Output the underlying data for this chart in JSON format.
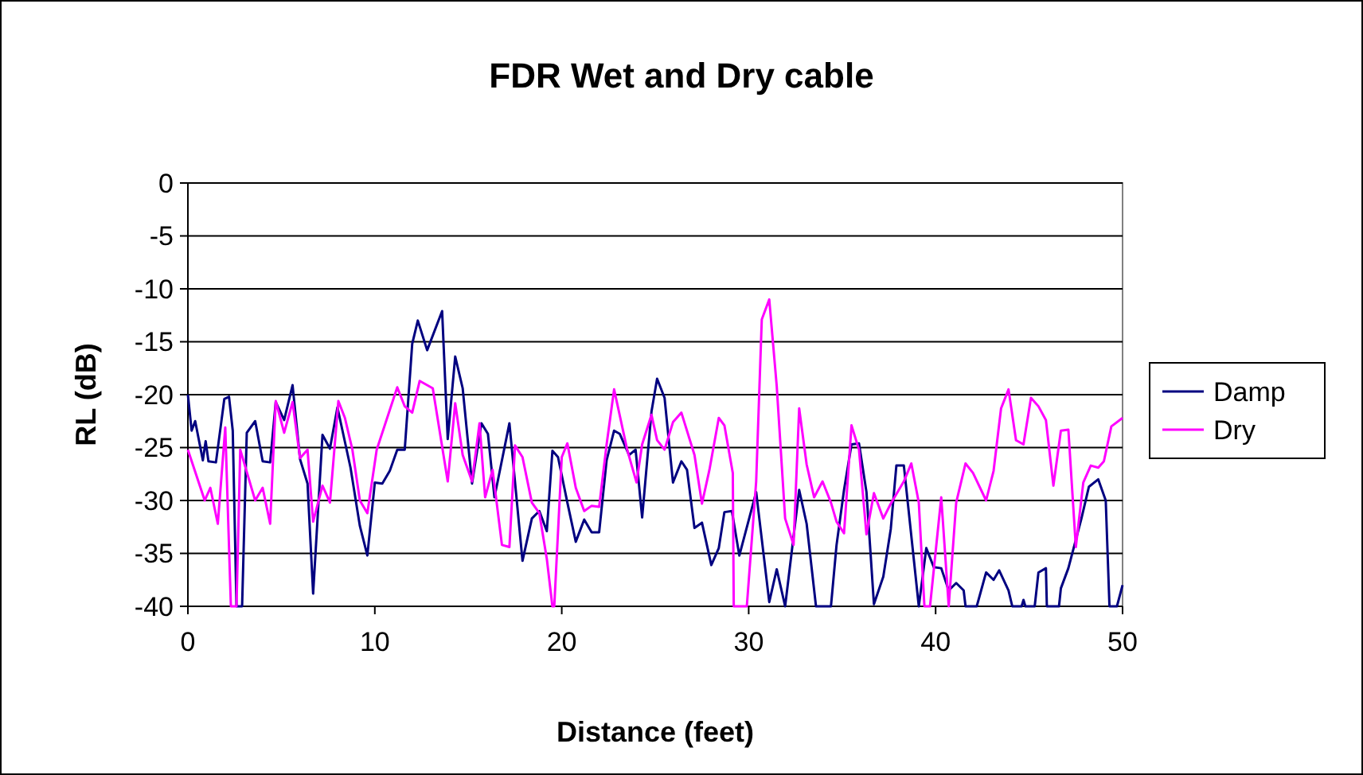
{
  "chart_data": {
    "type": "line",
    "title": "FDR Wet and Dry cable",
    "xlabel": "Distance (feet)",
    "ylabel": "RL (dB)",
    "xlim": [
      0,
      50
    ],
    "xticks": [
      0,
      10,
      20,
      30,
      40,
      50
    ],
    "ylim": [
      -40,
      0
    ],
    "yticks": [
      0,
      -5,
      -10,
      -15,
      -20,
      -25,
      -30,
      -35,
      -40
    ],
    "grid": "y",
    "legend": "right",
    "marker": "none",
    "line_style": "solid",
    "series": [
      {
        "name": "Damp",
        "color": "#000080",
        "x": [
          0,
          0.2,
          0.39,
          0.8,
          0.95,
          1.1,
          1.5,
          1.95,
          2.2,
          2.4,
          2.6,
          2.9,
          3.15,
          3.6,
          4.0,
          4.4,
          4.7,
          5.15,
          5.6,
          6.0,
          6.4,
          6.7,
          7.2,
          7.6,
          8.0,
          8.7,
          9.2,
          9.6,
          10.0,
          10.4,
          10.8,
          11.2,
          11.6,
          12.0,
          12.3,
          12.8,
          13.6,
          13.9,
          14.3,
          14.7,
          15.2,
          15.7,
          16.05,
          16.4,
          17.2,
          17.9,
          18.4,
          18.8,
          19.2,
          19.5,
          19.8,
          20.3,
          20.75,
          21.2,
          21.6,
          22.0,
          22.4,
          22.8,
          23.1,
          23.6,
          23.95,
          24.3,
          24.8,
          25.1,
          25.5,
          25.95,
          26.4,
          26.7,
          27.1,
          27.5,
          28.0,
          28.4,
          28.7,
          29.1,
          29.5,
          30.4,
          31.1,
          31.5,
          31.95,
          32.7,
          33.1,
          33.6,
          34.4,
          34.7,
          35.1,
          35.5,
          35.9,
          36.3,
          36.7,
          37.2,
          37.6,
          37.9,
          38.3,
          39.1,
          39.5,
          39.9,
          40.3,
          40.7,
          41.1,
          41.5,
          41.6,
          42.2,
          42.7,
          43.1,
          43.4,
          43.9,
          44.1,
          44.6,
          44.7,
          44.8,
          45.3,
          45.5,
          45.9,
          45.95,
          46.6,
          46.7,
          47.1,
          47.8,
          48.2,
          48.7,
          49.1,
          49.3,
          49.7,
          50
        ],
        "values": [
          -20,
          -23.4,
          -22.5,
          -26.2,
          -24.4,
          -26.3,
          -26.4,
          -20.4,
          -20.2,
          -23.4,
          -40,
          -40,
          -23.6,
          -22.5,
          -26.3,
          -26.4,
          -20.7,
          -22.4,
          -19.1,
          -26.1,
          -28.4,
          -38.8,
          -23.8,
          -25.1,
          -21.2,
          -26.9,
          -32.4,
          -35.2,
          -28.3,
          -28.4,
          -27.2,
          -25.2,
          -25.2,
          -15.2,
          -13,
          -15.8,
          -12.1,
          -24.2,
          -16.4,
          -19.4,
          -28.4,
          -22.7,
          -23.7,
          -29.7,
          -22.7,
          -35.7,
          -31.7,
          -31,
          -32.9,
          -25.3,
          -25.9,
          -30.2,
          -33.9,
          -31.8,
          -33,
          -33,
          -26.2,
          -23.4,
          -23.7,
          -25.7,
          -25.2,
          -31.6,
          -21.6,
          -18.5,
          -20.3,
          -28.3,
          -26.3,
          -27.1,
          -32.6,
          -32.1,
          -36.1,
          -34.5,
          -31.1,
          -31,
          -35.2,
          -29.2,
          -39.6,
          -36.5,
          -40,
          -29,
          -32.2,
          -40,
          -40,
          -34.2,
          -29,
          -24.7,
          -24.6,
          -29.2,
          -39.8,
          -37.2,
          -32.7,
          -26.7,
          -26.7,
          -40,
          -34.5,
          -36.3,
          -36.4,
          -38.5,
          -37.8,
          -38.5,
          -40,
          -40,
          -36.8,
          -37.5,
          -36.6,
          -38.5,
          -40,
          -40,
          -39.4,
          -40,
          -40,
          -36.8,
          -36.4,
          -40,
          -40,
          -38.3,
          -36.4,
          -31.7,
          -28.7,
          -28,
          -30,
          -40,
          -40,
          -38
        ]
      },
      {
        "name": "Dry",
        "color": "#ff00ff",
        "x": [
          0,
          0.9,
          1.2,
          1.6,
          2.0,
          2.3,
          2.6,
          2.8,
          3.6,
          4.0,
          4.4,
          4.7,
          5.15,
          5.6,
          6.0,
          6.4,
          6.7,
          7.2,
          7.6,
          8.05,
          8.4,
          8.8,
          9.2,
          9.6,
          10.1,
          11.2,
          11.6,
          12.0,
          12.4,
          13.1,
          13.9,
          14.3,
          14.7,
          15.2,
          15.6,
          15.9,
          16.3,
          16.8,
          17.2,
          17.5,
          17.9,
          18.4,
          18.8,
          19.2,
          19.5,
          19.6,
          20.0,
          20.3,
          20.75,
          21.2,
          21.6,
          22.0,
          22.4,
          22.8,
          23.5,
          24.0,
          24.3,
          24.8,
          25.1,
          25.5,
          25.95,
          26.4,
          27.1,
          27.5,
          27.9,
          28.4,
          28.7,
          29.15,
          29.2,
          29.9,
          30.4,
          30.7,
          31.1,
          31.5,
          31.95,
          32.4,
          32.7,
          33.1,
          33.5,
          33.95,
          34.4,
          34.7,
          35.1,
          35.5,
          35.9,
          36.3,
          36.7,
          37.2,
          37.6,
          38.3,
          38.7,
          39.1,
          39.4,
          39.7,
          40.3,
          40.7,
          41.1,
          41.6,
          42.0,
          42.7,
          43.1,
          43.5,
          43.9,
          44.3,
          44.7,
          45.1,
          45.5,
          45.9,
          46.3,
          46.7,
          47.1,
          47.5,
          47.9,
          48.3,
          48.7,
          49.0,
          49.4,
          50
        ],
        "values": [
          -25.2,
          -30,
          -28.8,
          -32.2,
          -23.1,
          -40,
          -40,
          -25.2,
          -30,
          -28.8,
          -32.2,
          -20.6,
          -23.6,
          -20.7,
          -26,
          -25.2,
          -32,
          -28.6,
          -30.2,
          -20.6,
          -22.2,
          -25.2,
          -30,
          -31.2,
          -25.2,
          -19.3,
          -21.1,
          -21.7,
          -18.7,
          -19.4,
          -28.2,
          -20.8,
          -25.7,
          -28.2,
          -22.7,
          -29.7,
          -27.1,
          -34.2,
          -34.4,
          -24.8,
          -25.9,
          -30.2,
          -31.2,
          -35.5,
          -40,
          -40,
          -25.9,
          -24.6,
          -28.8,
          -31,
          -30.5,
          -30.6,
          -24.7,
          -19.5,
          -25.2,
          -28.3,
          -24.7,
          -21.9,
          -24.3,
          -25.2,
          -22.6,
          -21.7,
          -25.7,
          -30.3,
          -27.1,
          -22.2,
          -22.9,
          -27.4,
          -40,
          -40,
          -28.2,
          -12.9,
          -11,
          -19.2,
          -31.7,
          -34.2,
          -21.3,
          -26.6,
          -29.7,
          -28.2,
          -30.2,
          -32,
          -33.1,
          -22.9,
          -25.2,
          -33.2,
          -29.3,
          -31.7,
          -30.3,
          -28.2,
          -26.5,
          -30.2,
          -40,
          -40,
          -29.7,
          -40,
          -30.2,
          -26.5,
          -27.4,
          -30,
          -27.2,
          -21.3,
          -19.5,
          -24.3,
          -24.7,
          -20.3,
          -21.1,
          -22.4,
          -28.6,
          -23.4,
          -23.3,
          -34.4,
          -28.3,
          -26.7,
          -26.9,
          -26.3,
          -23,
          -22.2
        ]
      }
    ]
  }
}
